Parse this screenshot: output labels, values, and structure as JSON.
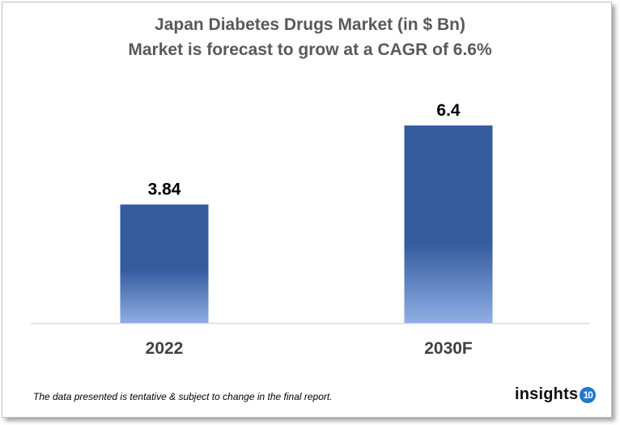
{
  "chart_data": {
    "type": "bar",
    "title": "Japan Diabetes Drugs Market (in $ Bn)",
    "subtitle": "Market is forecast to grow at a CAGR of 6.6%",
    "categories": [
      "2022",
      "2030F"
    ],
    "values": [
      3.84,
      6.4
    ],
    "data_labels": [
      "3.84",
      "6.4"
    ],
    "xlabel": "",
    "ylabel": "",
    "ylim": [
      0,
      6.4
    ],
    "grid": false,
    "colors": {
      "bar_top": "#345c9f",
      "bar_bottom": "#8faee3"
    }
  },
  "footer": {
    "note": "The data presented is tentative & subject to change in the final report.",
    "logo_text": "insights",
    "logo_badge": "10",
    "logo_badge_color": "#1f78c8"
  }
}
